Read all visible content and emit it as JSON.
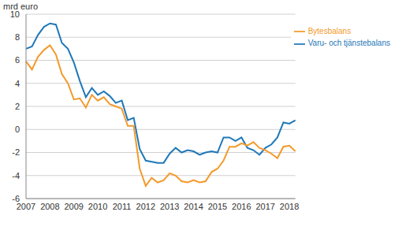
{
  "chart_data": {
    "type": "line",
    "y_label": "mrd euro",
    "categories": [
      "2007",
      null,
      null,
      null,
      "2008",
      null,
      null,
      null,
      "2009",
      null,
      null,
      null,
      "2010",
      null,
      null,
      null,
      "2011",
      null,
      null,
      null,
      "2012",
      null,
      null,
      null,
      "2013",
      null,
      null,
      null,
      "2014",
      null,
      null,
      null,
      "2015",
      null,
      null,
      null,
      "2016",
      null,
      null,
      null,
      "2017",
      null,
      null,
      null,
      "2018",
      null
    ],
    "series": [
      {
        "name": "Varu- och tjänstebalans",
        "color": "#1f78b8",
        "values": [
          7.0,
          7.2,
          8.2,
          8.9,
          9.2,
          9.1,
          7.5,
          7.0,
          5.8,
          4.2,
          2.8,
          3.6,
          3.0,
          3.3,
          2.9,
          2.3,
          2.5,
          0.8,
          1.0,
          -1.7,
          -2.7,
          -2.8,
          -2.9,
          -2.9,
          -2.1,
          -1.6,
          -2.0,
          -1.8,
          -1.9,
          -2.2,
          -2.0,
          -1.9,
          -2.0,
          -0.7,
          -0.7,
          -1.0,
          -0.7,
          -1.6,
          -1.8,
          -2.2,
          -1.6,
          -1.3,
          -0.7,
          0.6,
          0.5,
          0.8
        ]
      },
      {
        "name": "Bytesbalans",
        "color": "#f39a2b",
        "values": [
          5.9,
          5.2,
          6.3,
          6.9,
          7.3,
          6.5,
          4.8,
          4.0,
          2.6,
          2.7,
          1.9,
          3.0,
          2.5,
          2.8,
          2.2,
          2.0,
          1.8,
          0.3,
          0.3,
          -3.4,
          -4.9,
          -4.2,
          -4.6,
          -4.4,
          -3.8,
          -4.0,
          -4.5,
          -4.6,
          -4.4,
          -4.6,
          -4.5,
          -3.7,
          -3.4,
          -2.7,
          -1.5,
          -1.5,
          -1.2,
          -1.4,
          -1.1,
          -1.6,
          -1.8,
          -2.1,
          -2.5,
          -1.5,
          -1.4,
          -1.9
        ]
      }
    ],
    "ylim": [
      -6,
      10
    ],
    "yticks": [
      -6,
      -4,
      -2,
      0,
      2,
      4,
      6,
      8,
      10
    ],
    "grid": true,
    "legend": "top-right"
  }
}
